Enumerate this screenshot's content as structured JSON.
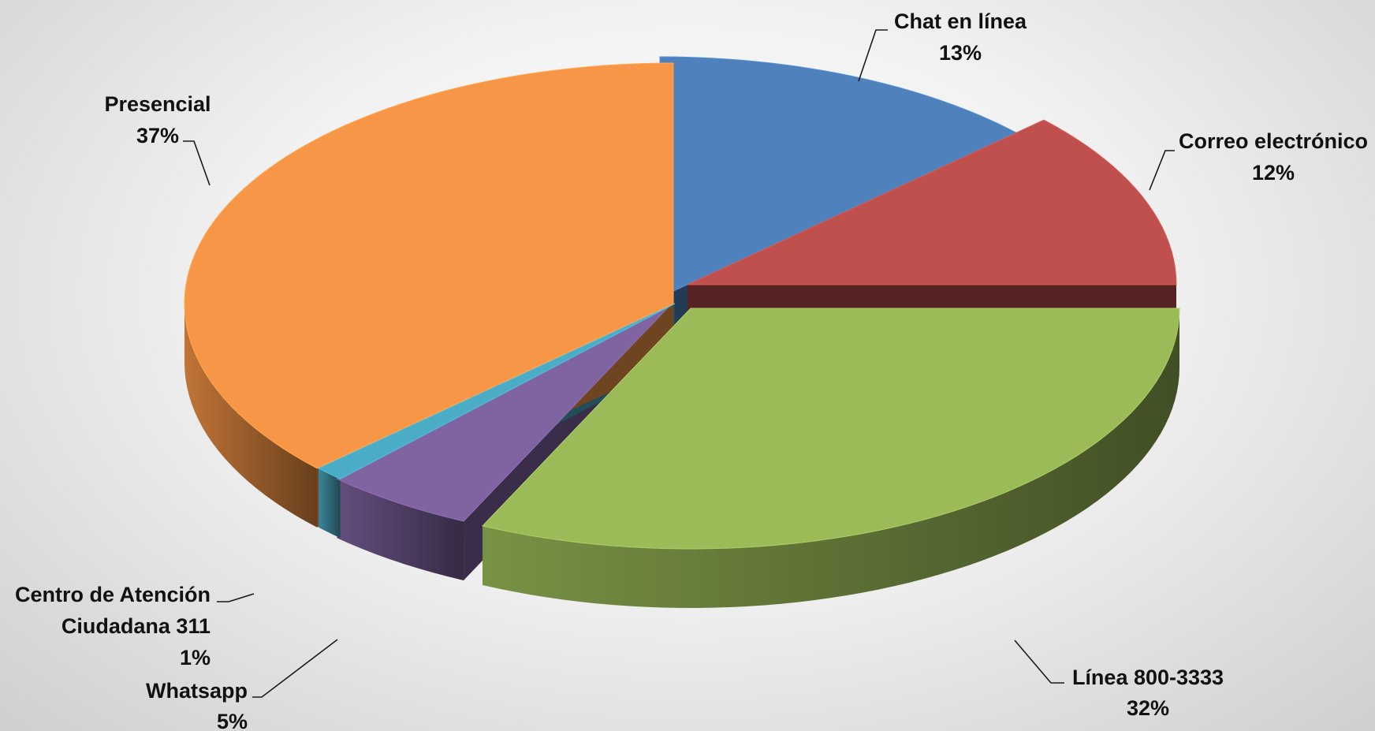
{
  "chart_data": {
    "type": "pie",
    "style": "3d-exploded",
    "title": "",
    "slices": [
      {
        "key": "chat",
        "label": "Chat en línea",
        "value": 13,
        "value_label": "13%",
        "color": "#4f81bd"
      },
      {
        "key": "correo",
        "label": "Correo electrónico",
        "value": 12,
        "value_label": "12%",
        "color": "#c0504d"
      },
      {
        "key": "linea",
        "label": "Línea 800-3333",
        "value": 32,
        "value_label": "32%",
        "color": "#9bbb59"
      },
      {
        "key": "whatsapp",
        "label": "Whatsapp",
        "value": 5,
        "value_label": "5%",
        "color": "#8064a2"
      },
      {
        "key": "centro",
        "label": "Centro de Atención Ciudadana 311",
        "label_lines": [
          "Centro de Atención",
          "Ciudadana 311"
        ],
        "value": 1,
        "value_label": "1%",
        "color": "#4bacc6"
      },
      {
        "key": "presencial",
        "label": "Presencial",
        "value": 37,
        "value_label": "37%",
        "color": "#f79646"
      }
    ],
    "legend": "none",
    "data_labels": "outside with leader lines"
  }
}
